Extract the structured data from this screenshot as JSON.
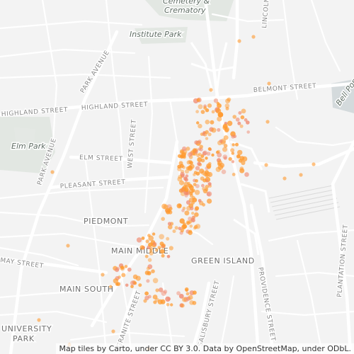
{
  "map": {
    "park_labels": [
      "Cemetery & Crematory",
      "Institute Park",
      "Elm Park",
      "Bell Pond"
    ],
    "street_labels": [
      "HIGHLAND STREET",
      "BELMONT STREET",
      "ELM STREET",
      "PLEASANT STREET",
      "PARK AVENUE",
      "WEST STREET",
      "LINCOLN STREET",
      "MAY STREET",
      "PLANTATION STREET",
      "PROVIDENCE STREET",
      "SALISBURY STREET",
      "GRANITE STREET"
    ],
    "area_labels": [
      "PIEDMONT",
      "MAIN MIDDLE",
      "GREEN ISLAND",
      "MAIN SOUTH",
      "UNIVERSITY",
      "PARK"
    ],
    "colors": {
      "background": "#f3f3f3",
      "road": "#ffffff",
      "park": "#e2e7e2",
      "water": "#d4dadc",
      "point": "#ff9a2e",
      "point_faint": "#f08a70"
    },
    "attribution": "Map tiles by Carto, under CC BY 3.0. Data by OpenStreetMap, under ODbL."
  }
}
